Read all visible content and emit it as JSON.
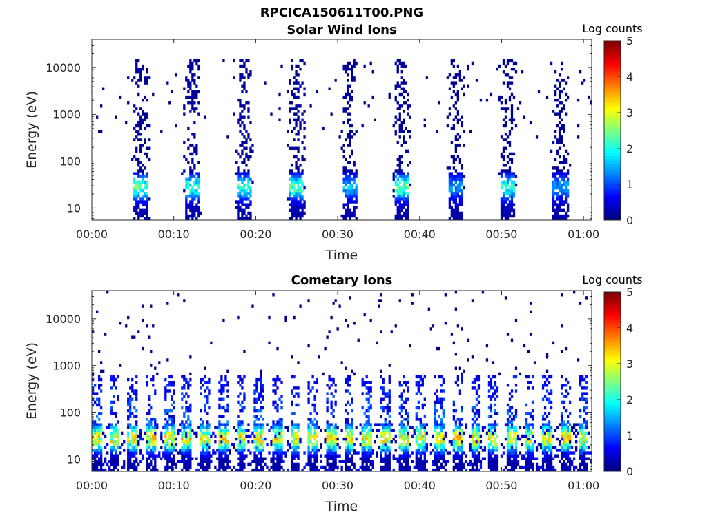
{
  "figure_title": "RPCICA150611T00.PNG",
  "chart_data": [
    {
      "type": "heatmap",
      "title": "Solar Wind Ions",
      "xlabel": "Time",
      "ylabel": "Energy (eV)",
      "y_scale": "log",
      "ylim": [
        5.5,
        40000
      ],
      "x_ticks": [
        "00:00",
        "00:10",
        "00:20",
        "00:30",
        "00:40",
        "00:50",
        "01:00"
      ],
      "y_ticks": [
        "10",
        "100",
        "1000",
        "10000"
      ],
      "xlim_minutes": [
        0,
        61
      ],
      "colorbar": {
        "label": "Log counts",
        "range": [
          0,
          5
        ],
        "ticks": [
          "0",
          "1",
          "2",
          "3",
          "4",
          "5"
        ]
      },
      "bursts_minutes": [
        {
          "t": 6.0,
          "peak_log_counts": 2.6
        },
        {
          "t": 12.2,
          "peak_log_counts": 2.3
        },
        {
          "t": 18.6,
          "peak_log_counts": 2.4
        },
        {
          "t": 25.0,
          "peak_log_counts": 2.5
        },
        {
          "t": 31.5,
          "peak_log_counts": 1.6
        },
        {
          "t": 37.8,
          "peak_log_counts": 2.8
        },
        {
          "t": 44.5,
          "peak_log_counts": 1.4
        },
        {
          "t": 50.8,
          "peak_log_counts": 2.3
        },
        {
          "t": 57.2,
          "peak_log_counts": 1.5
        }
      ]
    },
    {
      "type": "heatmap",
      "title": "Cometary Ions",
      "xlabel": "Time",
      "ylabel": "Energy (eV)",
      "y_scale": "log",
      "ylim": [
        5.5,
        40000
      ],
      "x_ticks": [
        "00:00",
        "00:10",
        "00:20",
        "00:30",
        "00:40",
        "00:50",
        "01:00"
      ],
      "y_ticks": [
        "10",
        "100",
        "1000",
        "10000"
      ],
      "xlim_minutes": [
        0,
        61
      ],
      "colorbar": {
        "label": "Log counts",
        "range": [
          0,
          5
        ],
        "ticks": [
          "0",
          "1",
          "2",
          "3",
          "4",
          "5"
        ]
      },
      "typical_peak_energy_eV": 30,
      "typical_peak_log_counts": 3.8
    }
  ]
}
